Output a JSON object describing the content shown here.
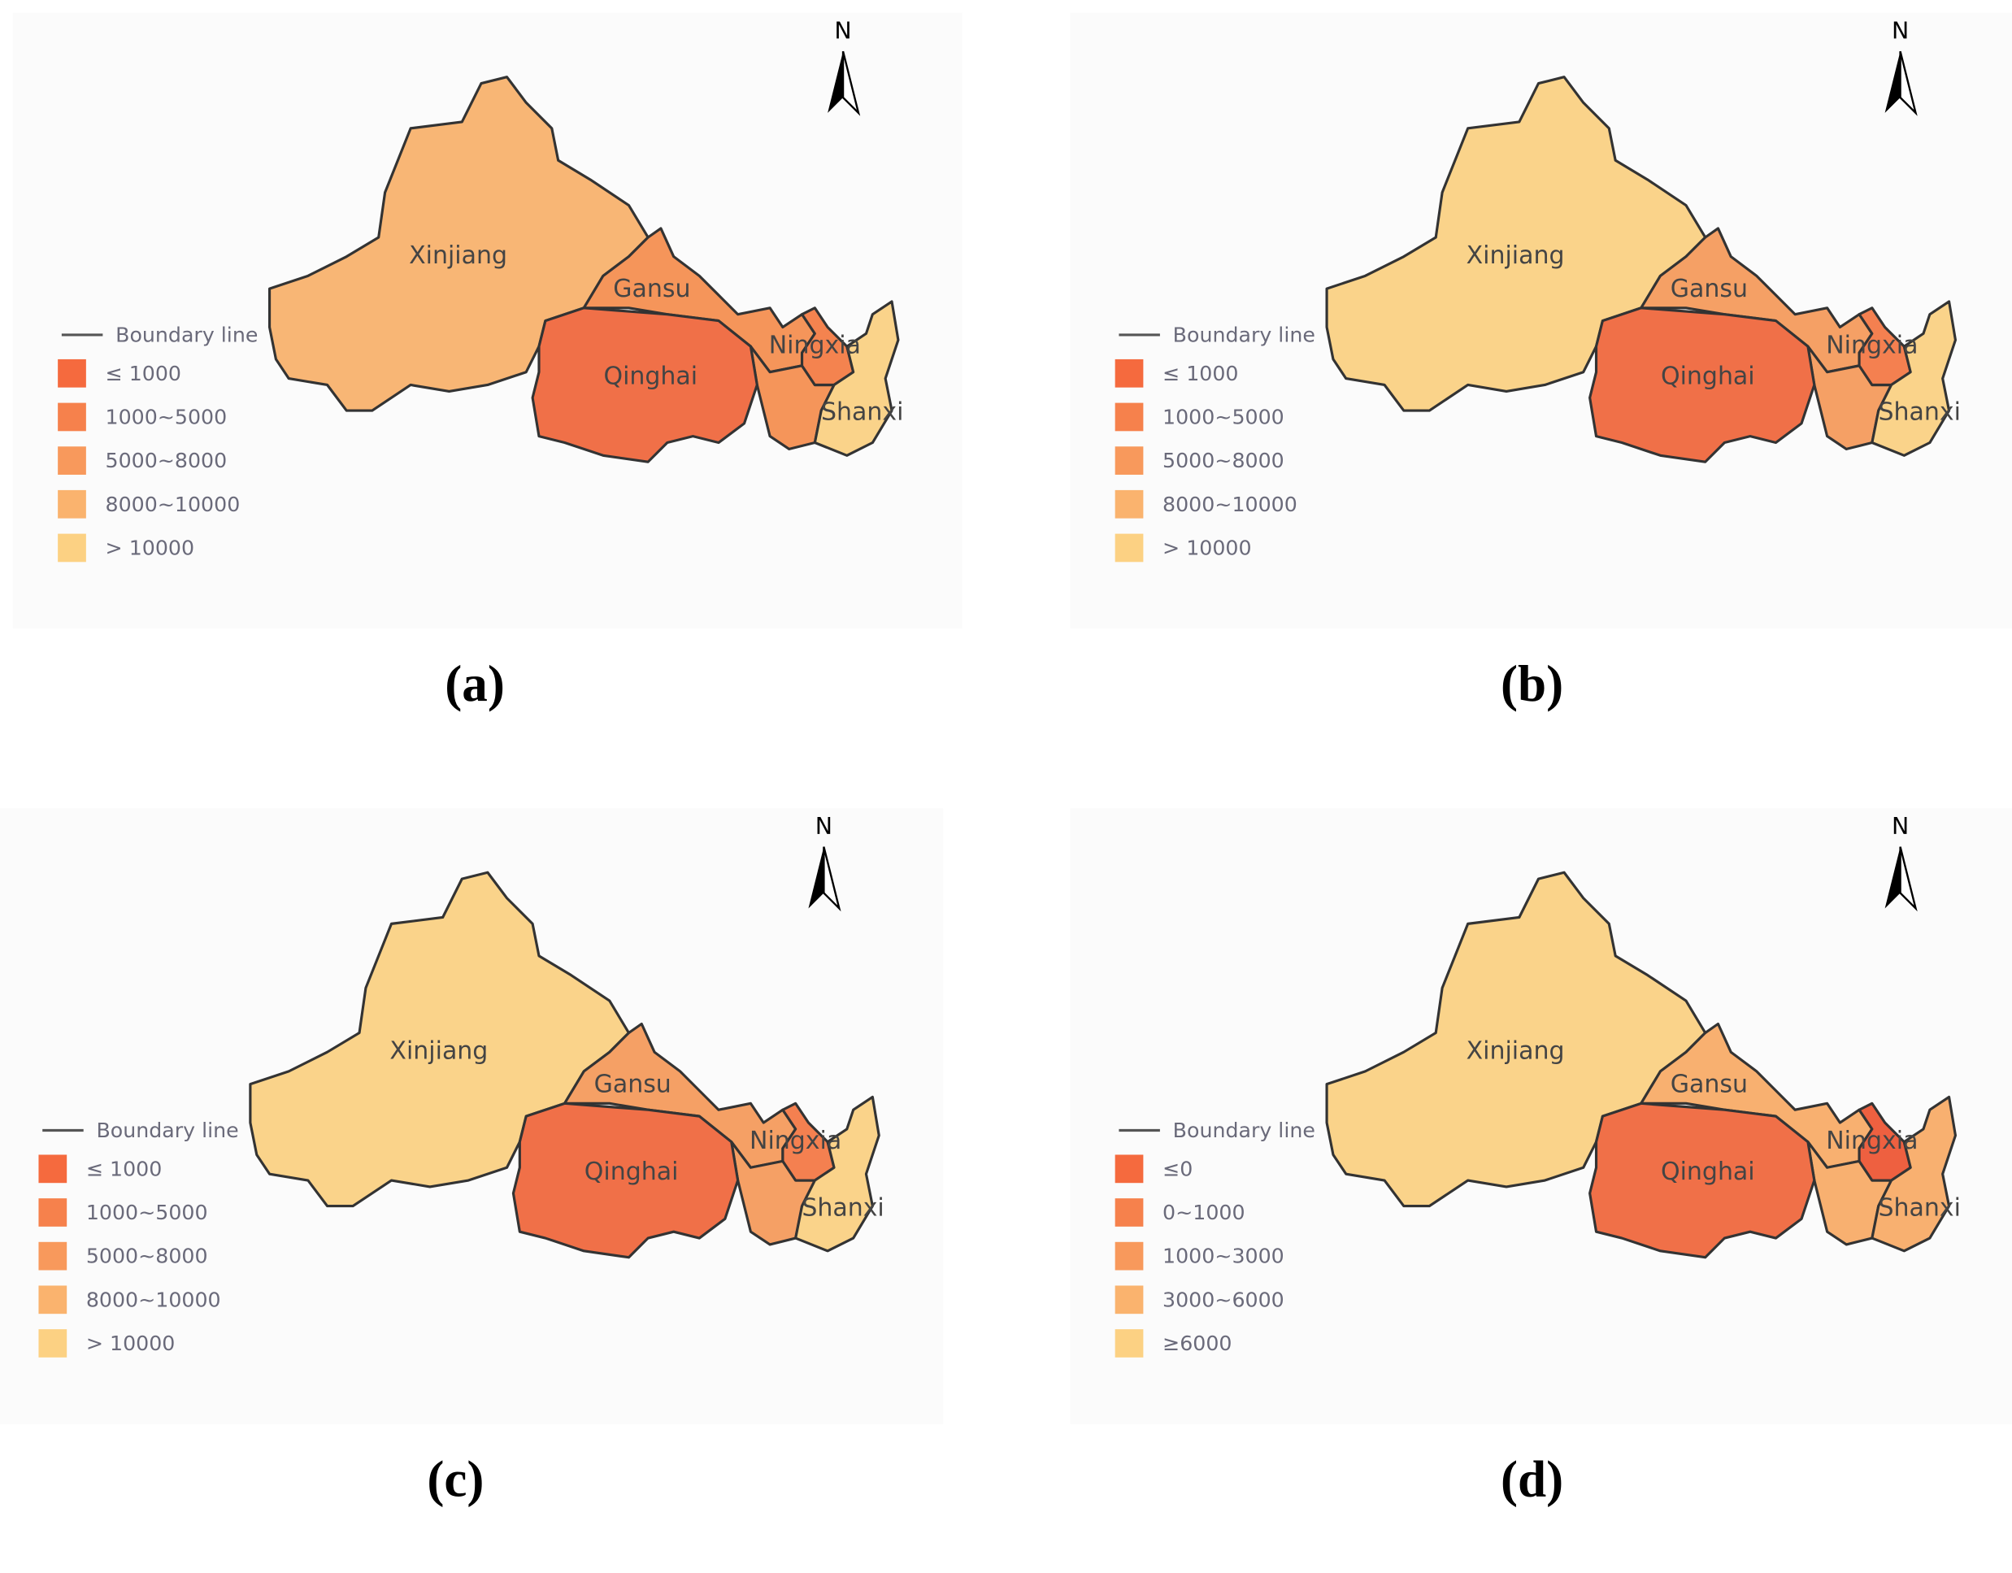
{
  "panels": [
    {
      "caption": "(a)",
      "north": "N",
      "regions": [
        {
          "label": "Xinjiang",
          "fill": "#f8b675"
        },
        {
          "label": "Gansu",
          "fill": "#f5955a"
        },
        {
          "label": "Qinghai",
          "fill": "#f07048"
        },
        {
          "label": "Ningxia",
          "fill": "#f4834f"
        },
        {
          "label": "Shanxi",
          "fill": "#fad38a"
        }
      ],
      "legend": {
        "title": "Boundary line",
        "items": [
          {
            "label": "≤ 1000",
            "color": "#f56a3e"
          },
          {
            "label": "1000~5000",
            "color": "#f6814c"
          },
          {
            "label": "5000~8000",
            "color": "#f8995c"
          },
          {
            "label": "8000~10000",
            "color": "#fab36e"
          },
          {
            "label": "> 10000",
            "color": "#fcd183"
          }
        ]
      }
    },
    {
      "caption": "(b)",
      "north": "N",
      "regions": [
        {
          "label": "Xinjiang",
          "fill": "#fad38a"
        },
        {
          "label": "Gansu",
          "fill": "#f5a065"
        },
        {
          "label": "Qinghai",
          "fill": "#f07048"
        },
        {
          "label": "Ningxia",
          "fill": "#f48050"
        },
        {
          "label": "Shanxi",
          "fill": "#fad38a"
        }
      ],
      "legend": {
        "title": "Boundary line",
        "items": [
          {
            "label": "≤ 1000",
            "color": "#f56a3e"
          },
          {
            "label": "1000~5000",
            "color": "#f6814c"
          },
          {
            "label": "5000~8000",
            "color": "#f8995c"
          },
          {
            "label": "8000~10000",
            "color": "#fab36e"
          },
          {
            "label": "> 10000",
            "color": "#fcd183"
          }
        ]
      }
    },
    {
      "caption": "(c)",
      "north": "N",
      "regions": [
        {
          "label": "Xinjiang",
          "fill": "#fad38a"
        },
        {
          "label": "Gansu",
          "fill": "#f5a065"
        },
        {
          "label": "Qinghai",
          "fill": "#f07048"
        },
        {
          "label": "Ningxia",
          "fill": "#f48050"
        },
        {
          "label": "Shanxi",
          "fill": "#fad38a"
        }
      ],
      "legend": {
        "title": "Boundary line",
        "items": [
          {
            "label": "≤ 1000",
            "color": "#f56a3e"
          },
          {
            "label": "1000~5000",
            "color": "#f6814c"
          },
          {
            "label": "5000~8000",
            "color": "#f8995c"
          },
          {
            "label": "8000~10000",
            "color": "#fab36e"
          },
          {
            "label": "> 10000",
            "color": "#fcd183"
          }
        ]
      }
    },
    {
      "caption": "(d)",
      "north": "N",
      "regions": [
        {
          "label": "Xinjiang",
          "fill": "#fad38a"
        },
        {
          "label": "Gansu",
          "fill": "#f8b070"
        },
        {
          "label": "Qinghai",
          "fill": "#f07048"
        },
        {
          "label": "Ningxia",
          "fill": "#ee6040"
        },
        {
          "label": "Shanxi",
          "fill": "#f8b070"
        }
      ],
      "legend": {
        "title": "Boundary line",
        "items": [
          {
            "label": "≤0",
            "color": "#f56a3e"
          },
          {
            "label": "0~1000",
            "color": "#f6814c"
          },
          {
            "label": "1000~3000",
            "color": "#f8995c"
          },
          {
            "label": "3000~6000",
            "color": "#fab36e"
          },
          {
            "label": "≥6000",
            "color": "#fcd183"
          }
        ]
      }
    }
  ]
}
